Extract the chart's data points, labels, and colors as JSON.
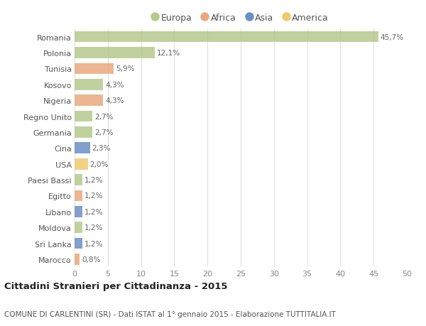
{
  "countries": [
    "Romania",
    "Polonia",
    "Tunisia",
    "Kosovo",
    "Nigeria",
    "Regno Unito",
    "Germania",
    "Cina",
    "USA",
    "Paesi Bassi",
    "Egitto",
    "Libano",
    "Moldova",
    "Sri Lanka",
    "Marocco"
  ],
  "values": [
    45.7,
    12.1,
    5.9,
    4.3,
    4.3,
    2.7,
    2.7,
    2.3,
    2.0,
    1.2,
    1.2,
    1.2,
    1.2,
    1.2,
    0.8
  ],
  "labels": [
    "45,7%",
    "12,1%",
    "5,9%",
    "4,3%",
    "4,3%",
    "2,7%",
    "2,7%",
    "2,3%",
    "2,0%",
    "1,2%",
    "1,2%",
    "1,2%",
    "1,2%",
    "1,2%",
    "0,8%"
  ],
  "continents": [
    "Europa",
    "Europa",
    "Africa",
    "Europa",
    "Africa",
    "Europa",
    "Europa",
    "Asia",
    "America",
    "Europa",
    "Africa",
    "Asia",
    "Europa",
    "Asia",
    "Africa"
  ],
  "colors": {
    "Europa": "#b5c98e",
    "Africa": "#e8a97e",
    "Asia": "#6b8fc4",
    "America": "#f0c96e"
  },
  "legend_labels": [
    "Europa",
    "Africa",
    "Asia",
    "America"
  ],
  "legend_colors": [
    "#b5c98e",
    "#e8a97e",
    "#6b8fc4",
    "#f0c96e"
  ],
  "title": "Cittadini Stranieri per Cittadinanza - 2015",
  "subtitle": "COMUNE DI CARLENTINI (SR) - Dati ISTAT al 1° gennaio 2015 - Elaborazione TUTTITALIA.IT",
  "xlim": [
    0,
    50
  ],
  "xticks": [
    0,
    5,
    10,
    15,
    20,
    25,
    30,
    35,
    40,
    45,
    50
  ],
  "background_color": "#ffffff",
  "grid_color": "#e0e0e0"
}
